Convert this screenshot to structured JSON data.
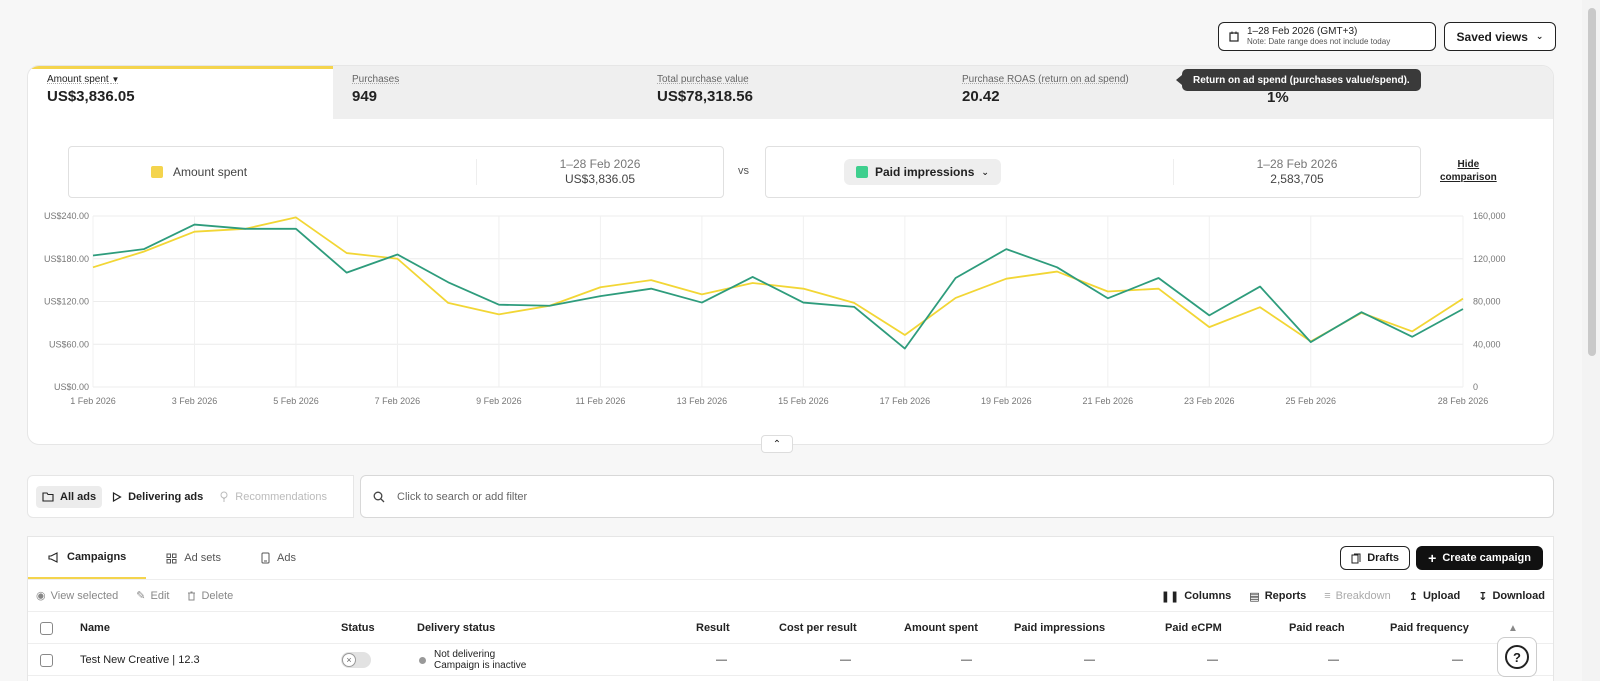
{
  "date_range": {
    "range": "1–28 Feb 2026 (GMT+3)",
    "note": "Note: Date range does not include today"
  },
  "saved_views_label": "Saved views",
  "metrics": [
    {
      "label": "Amount spent",
      "value": "US$3,836.05"
    },
    {
      "label": "Purchases",
      "value": "949"
    },
    {
      "label": "Total purchase value",
      "value": "US$78,318.56"
    },
    {
      "label": "Purchase ROAS (return on ad spend)",
      "value": "20.42"
    },
    {
      "label": "",
      "value": "1%"
    }
  ],
  "tooltip": "Return on ad spend (purchases value/spend).",
  "comparison": {
    "left": {
      "label": "Amount spent",
      "range": "1–28 Feb 2026",
      "value": "US$3,836.05",
      "color": "#f4d44d"
    },
    "vs": "vs",
    "right": {
      "label": "Paid impressions",
      "range": "1–28 Feb 2026",
      "value": "2,583,705",
      "color": "#3ecf8e"
    },
    "hide_label_1": "Hide",
    "hide_label_2": "comparison"
  },
  "chart_data": {
    "type": "line",
    "x": [
      "1 Feb 2026",
      "2 Feb 2026",
      "3 Feb 2026",
      "4 Feb 2026",
      "5 Feb 2026",
      "6 Feb 2026",
      "7 Feb 2026",
      "8 Feb 2026",
      "9 Feb 2026",
      "10 Feb 2026",
      "11 Feb 2026",
      "12 Feb 2026",
      "13 Feb 2026",
      "14 Feb 2026",
      "15 Feb 2026",
      "16 Feb 2026",
      "17 Feb 2026",
      "18 Feb 2026",
      "19 Feb 2026",
      "20 Feb 2026",
      "21 Feb 2026",
      "22 Feb 2026",
      "23 Feb 2026",
      "24 Feb 2026",
      "25 Feb 2026",
      "26 Feb 2026",
      "27 Feb 2026",
      "28 Feb 2026"
    ],
    "xticks": [
      "1 Feb 2026",
      "3 Feb 2026",
      "5 Feb 2026",
      "7 Feb 2026",
      "9 Feb 2026",
      "11 Feb 2026",
      "13 Feb 2026",
      "15 Feb 2026",
      "17 Feb 2026",
      "19 Feb 2026",
      "21 Feb 2026",
      "23 Feb 2026",
      "25 Feb 2026",
      "28 Feb 2026"
    ],
    "y_left": {
      "ticks": [
        "US$0.00",
        "US$60.00",
        "US$120.00",
        "US$180.00",
        "US$240.00"
      ],
      "lim": [
        0,
        240
      ]
    },
    "y_right": {
      "ticks": [
        "0",
        "40,000",
        "80,000",
        "120,000",
        "160,000"
      ],
      "lim": [
        0,
        160000
      ]
    },
    "series": [
      {
        "name": "Amount spent",
        "axis": "left",
        "color": "#f2d635",
        "values": [
          168,
          190,
          218,
          222,
          238,
          188,
          180,
          118,
          102,
          114,
          140,
          150,
          130,
          146,
          138,
          118,
          73,
          125,
          152,
          162,
          134,
          138,
          84,
          112,
          64,
          104,
          78,
          124
        ]
      },
      {
        "name": "Paid impressions",
        "axis": "right",
        "color": "#2e9c7c",
        "values": [
          123000,
          129000,
          152000,
          148000,
          148000,
          107000,
          124000,
          98000,
          77000,
          76000,
          85000,
          92000,
          79000,
          103000,
          79000,
          75000,
          36000,
          102000,
          129000,
          112000,
          83000,
          102000,
          67000,
          94000,
          42000,
          70000,
          47000,
          73000
        ]
      }
    ],
    "grid": true
  },
  "filter_tabs": [
    {
      "label": "All ads"
    },
    {
      "label": "Delivering ads"
    },
    {
      "label": "Recommendations"
    }
  ],
  "search_placeholder": "Click to search or add filter",
  "level_tabs": [
    {
      "label": "Campaigns"
    },
    {
      "label": "Ad sets"
    },
    {
      "label": "Ads"
    }
  ],
  "drafts_label": "Drafts",
  "create_label": "Create campaign",
  "actions_left": [
    {
      "label": "View selected"
    },
    {
      "label": "Edit"
    },
    {
      "label": "Delete"
    }
  ],
  "actions_right": [
    {
      "label": "Columns"
    },
    {
      "label": "Reports"
    },
    {
      "label": "Breakdown"
    },
    {
      "label": "Upload"
    },
    {
      "label": "Download"
    }
  ],
  "columns": [
    "Name",
    "Status",
    "Delivery status",
    "Result",
    "Cost per result",
    "Amount spent",
    "Paid impressions",
    "Paid eCPM",
    "Paid reach",
    "Paid frequency"
  ],
  "rows": [
    {
      "name": "Test New Creative | 12.3",
      "delivery_1": "Not delivering",
      "delivery_2": "Campaign is inactive",
      "result": "—",
      "cpr": "—",
      "spent": "—",
      "impr": "—",
      "ecpm": "—",
      "reach": "—",
      "freq": "—"
    }
  ]
}
